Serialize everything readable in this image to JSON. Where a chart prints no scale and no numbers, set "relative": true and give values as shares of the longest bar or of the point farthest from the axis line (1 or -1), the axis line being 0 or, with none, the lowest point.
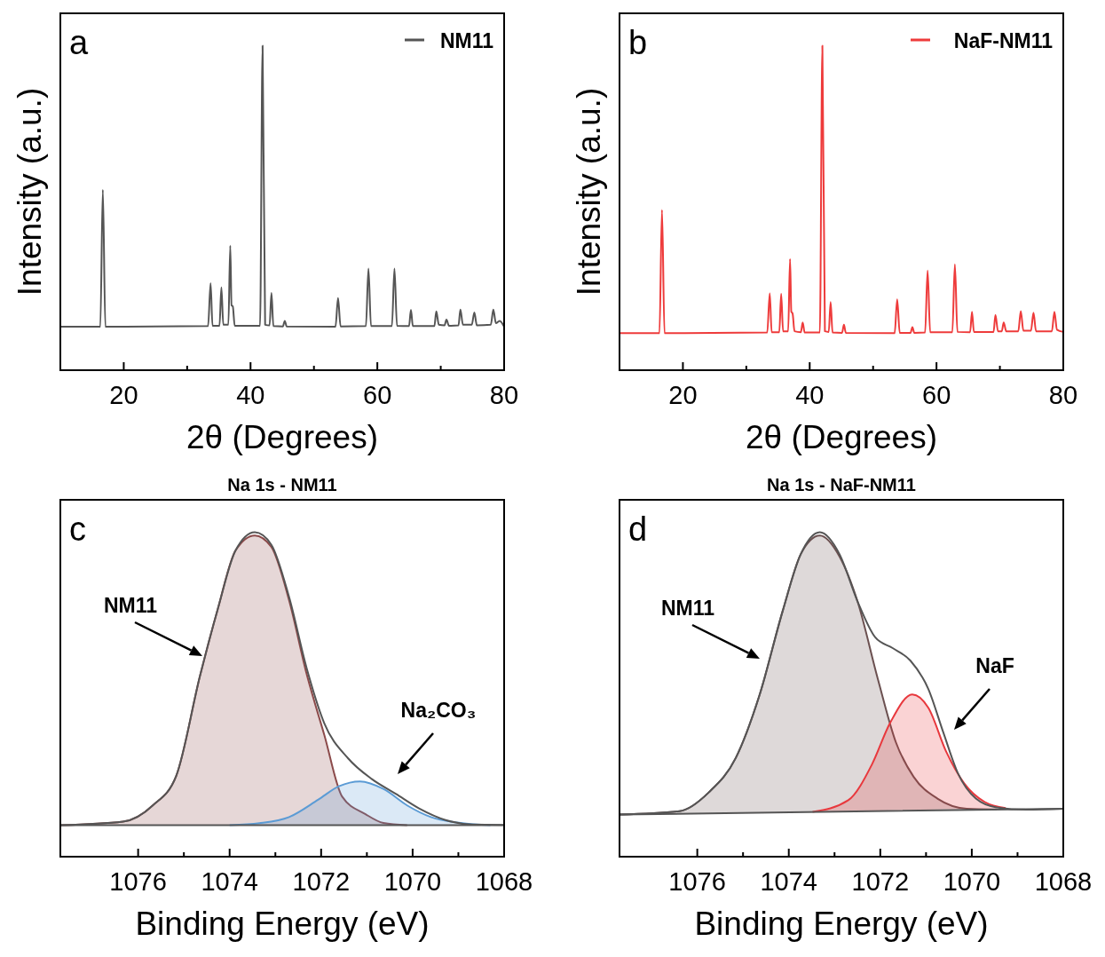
{
  "chart_data": [
    {
      "type": "line",
      "relative": true,
      "xlabel": "2θ (Degrees)",
      "ylabel": "Intensity (a.u.)",
      "annotations": [
        "a"
      ],
      "legend": "top right",
      "xlim": [
        10,
        80
      ],
      "xticks": [
        20,
        {
          "value": 30,
          "label": null
        },
        40,
        {
          "value": 50,
          "label": null
        },
        60,
        {
          "value": 70,
          "label": null
        },
        80
      ],
      "series": [
        {
          "name": "NM11",
          "color": "#555555",
          "x": [
            10,
            16.3,
            16.7,
            17.1,
            33.3,
            33.7,
            34.0,
            35.1,
            35.4,
            35.7,
            36.5,
            36.8,
            37.0,
            37.2,
            37.5,
            41.5,
            41.9,
            42.3,
            43.0,
            43.3,
            43.6,
            45.1,
            45.4,
            45.7,
            53.4,
            53.8,
            54.2,
            58.2,
            58.6,
            59.0,
            62.3,
            62.7,
            63.1,
            65.0,
            65.3,
            65.6,
            69.0,
            69.3,
            69.7,
            70.6,
            70.9,
            71.3,
            72.8,
            73.1,
            73.5,
            74.9,
            75.3,
            75.7,
            77.9,
            78.3,
            78.7,
            79.3,
            80
          ],
          "values": [
            0.134,
            0.134,
            0.556,
            0.134,
            0.136,
            0.268,
            0.137,
            0.137,
            0.255,
            0.14,
            0.14,
            0.384,
            0.2,
            0.197,
            0.137,
            0.137,
            1.0,
            0.14,
            0.138,
            0.238,
            0.136,
            0.135,
            0.152,
            0.135,
            0.134,
            0.222,
            0.135,
            0.136,
            0.313,
            0.136,
            0.136,
            0.313,
            0.137,
            0.136,
            0.186,
            0.136,
            0.136,
            0.181,
            0.14,
            0.138,
            0.156,
            0.137,
            0.138,
            0.187,
            0.14,
            0.14,
            0.178,
            0.138,
            0.14,
            0.187,
            0.145,
            0.152,
            0.134
          ]
        }
      ]
    },
    {
      "type": "line",
      "relative": true,
      "xlabel": "2θ (Degrees)",
      "ylabel": "Intensity (a.u.)",
      "annotations": [
        "b"
      ],
      "legend": "top right",
      "xlim": [
        10,
        80
      ],
      "xticks": [
        20,
        {
          "value": 30,
          "label": null
        },
        40,
        {
          "value": 50,
          "label": null
        },
        60,
        {
          "value": 70,
          "label": null
        },
        80
      ],
      "series": [
        {
          "name": "NaF-NM11",
          "color": "#ee3b3b",
          "x": [
            10,
            16.3,
            16.7,
            17.1,
            33.3,
            33.7,
            34.0,
            35.2,
            35.5,
            35.8,
            36.6,
            36.9,
            37.1,
            37.3,
            37.6,
            38.6,
            38.9,
            39.2,
            41.6,
            42.0,
            42.4,
            43.0,
            43.3,
            43.6,
            45.1,
            45.4,
            45.7,
            53.4,
            53.8,
            54.2,
            55.9,
            56.2,
            56.5,
            58.2,
            58.6,
            59.0,
            62.5,
            62.9,
            63.3,
            65.3,
            65.6,
            65.9,
            69.0,
            69.3,
            69.7,
            70.3,
            70.6,
            71.0,
            72.9,
            73.3,
            73.7,
            74.9,
            75.3,
            75.7,
            78.2,
            78.6,
            79.0,
            80
          ],
          "values": [
            0.114,
            0.114,
            0.494,
            0.114,
            0.116,
            0.237,
            0.117,
            0.117,
            0.235,
            0.12,
            0.12,
            0.343,
            0.18,
            0.175,
            0.12,
            0.117,
            0.147,
            0.116,
            0.116,
            1.0,
            0.12,
            0.118,
            0.21,
            0.116,
            0.115,
            0.14,
            0.115,
            0.114,
            0.218,
            0.115,
            0.115,
            0.133,
            0.115,
            0.116,
            0.307,
            0.117,
            0.117,
            0.326,
            0.118,
            0.117,
            0.18,
            0.118,
            0.118,
            0.17,
            0.12,
            0.12,
            0.147,
            0.12,
            0.12,
            0.182,
            0.122,
            0.122,
            0.177,
            0.12,
            0.12,
            0.18,
            0.125,
            0.118
          ]
        }
      ]
    },
    {
      "type": "line",
      "relative": true,
      "title": "Na 1s - NM11",
      "xlabel": "Binding Energy (eV)",
      "annotations": [
        "c",
        "NM11",
        "Na₂CO₃"
      ],
      "xlim": [
        1077.7,
        1068
      ],
      "xticks": [
        1076,
        {
          "value": 1075,
          "label": null
        },
        1074,
        {
          "value": 1073,
          "label": null
        },
        1072,
        {
          "value": 1071,
          "label": null
        },
        1070,
        {
          "value": 1069,
          "label": null
        },
        1068
      ],
      "series": [
        {
          "type": "area",
          "color": "#8b4a4a",
          "x": [
            1077.69,
            1076.33,
            1075.68,
            1075.17,
            1074.65,
            1074.26,
            1073.87,
            1073.45,
            1073.09,
            1072.7,
            1072.32,
            1071.93,
            1071.54,
            1071.03,
            1070.64,
            1070.12
          ],
          "values": [
            0.097,
            0.108,
            0.158,
            0.248,
            0.556,
            0.763,
            0.944,
            0.99,
            0.955,
            0.79,
            0.565,
            0.375,
            0.185,
            0.131,
            0.104,
            0.097
          ]
        },
        {
          "type": "area",
          "color": "#5b9bd5",
          "x": [
            1074.0,
            1073.35,
            1072.7,
            1072.06,
            1071.61,
            1071.15,
            1070.63,
            1070.12,
            1069.6,
            1068.95,
            1068.3
          ],
          "values": [
            0.097,
            0.103,
            0.122,
            0.176,
            0.217,
            0.232,
            0.208,
            0.158,
            0.122,
            0.104,
            0.097
          ]
        },
        {
          "color": "#555555",
          "x": [
            1077.69,
            1068.01
          ],
          "values": [
            0.097,
            0.097
          ]
        },
        {
          "color": "#555555",
          "x": [
            1077.69,
            1076.33,
            1075.68,
            1075.17,
            1074.65,
            1074.26,
            1073.87,
            1073.45,
            1073.09,
            1072.7,
            1072.32,
            1071.93,
            1071.41,
            1070.89,
            1070.37,
            1069.86,
            1069.28,
            1068.69,
            1068.01
          ],
          "values": [
            0.097,
            0.108,
            0.158,
            0.248,
            0.556,
            0.763,
            0.944,
            1.0,
            0.962,
            0.8,
            0.583,
            0.411,
            0.303,
            0.239,
            0.194,
            0.149,
            0.113,
            0.099,
            0.098
          ]
        }
      ]
    },
    {
      "type": "line",
      "relative": true,
      "title": "Na 1s - NaF-NM11",
      "xlabel": "Binding Energy (eV)",
      "annotations": [
        "d",
        "NM11",
        "NaF"
      ],
      "xlim": [
        1077.7,
        1068
      ],
      "xticks": [
        1076,
        {
          "value": 1075,
          "label": null
        },
        1074,
        {
          "value": 1073,
          "label": null
        },
        1072,
        {
          "value": 1071,
          "label": null
        },
        1070,
        {
          "value": 1069,
          "label": null
        },
        1068
      ],
      "series": [
        {
          "type": "area",
          "color": "#6b5050",
          "x": [
            1077.69,
            1076.39,
            1075.75,
            1075.16,
            1074.64,
            1074.13,
            1073.74,
            1073.32,
            1072.89,
            1072.5,
            1072.05,
            1071.66,
            1071.27,
            1070.75,
            1070.11,
            1069.46
          ],
          "values": [
            0.13,
            0.14,
            0.198,
            0.304,
            0.498,
            0.759,
            0.932,
            0.99,
            0.925,
            0.788,
            0.546,
            0.353,
            0.246,
            0.179,
            0.148,
            0.146
          ]
        },
        {
          "type": "area",
          "color": "#e8383d",
          "x": [
            1073.48,
            1072.7,
            1072.18,
            1071.79,
            1071.3,
            1070.95,
            1070.56,
            1070.17,
            1069.72,
            1069.26
          ],
          "values": [
            0.138,
            0.174,
            0.285,
            0.411,
            0.5,
            0.459,
            0.324,
            0.227,
            0.169,
            0.15
          ]
        },
        {
          "color": "#555555",
          "x": [
            1077.69,
            1068.0
          ],
          "values": [
            0.13,
            0.148
          ]
        },
        {
          "color": "#555555",
          "x": [
            1077.69,
            1076.39,
            1075.75,
            1075.16,
            1074.64,
            1074.13,
            1073.74,
            1073.32,
            1072.89,
            1072.5,
            1072.11,
            1071.73,
            1071.34,
            1070.95,
            1070.62,
            1070.3,
            1069.91,
            1069.46,
            1068.81,
            1068.0
          ],
          "values": [
            0.13,
            0.14,
            0.198,
            0.304,
            0.498,
            0.759,
            0.932,
            1.0,
            0.932,
            0.788,
            0.676,
            0.643,
            0.604,
            0.517,
            0.382,
            0.256,
            0.179,
            0.152,
            0.145,
            0.148
          ]
        }
      ]
    }
  ]
}
